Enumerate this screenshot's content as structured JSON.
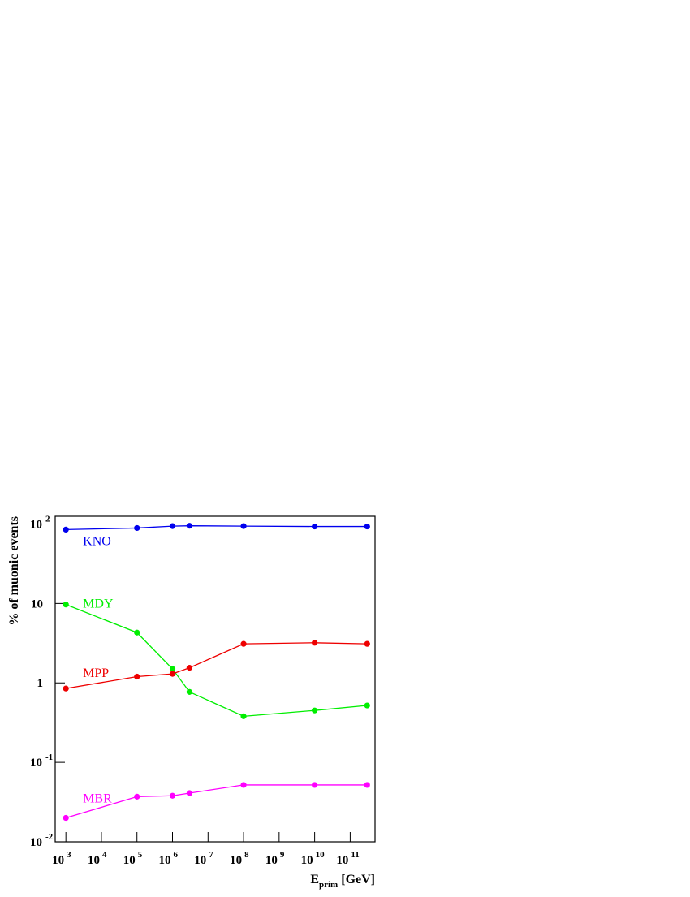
{
  "chart_data": {
    "type": "line",
    "ylabel": "% of muonic events",
    "xlabel": "E",
    "xlabel_sub": "prim",
    "xlabel_unit": "[GeV]",
    "x": [
      1000,
      100000,
      1000000,
      3000000,
      100000000,
      10000000000,
      300000000000
    ],
    "series": [
      {
        "name": "KNO",
        "color": "#0000ee",
        "values": [
          85,
          89,
          94,
          95,
          94,
          93,
          93
        ]
      },
      {
        "name": "MDY",
        "color": "#00ee00",
        "values": [
          9.7,
          4.3,
          1.5,
          0.77,
          0.38,
          0.45,
          0.52
        ]
      },
      {
        "name": "MPP",
        "color": "#ee0000",
        "values": [
          0.85,
          1.2,
          1.3,
          1.55,
          3.1,
          3.2,
          3.1
        ]
      },
      {
        "name": "MBR",
        "color": "#ff00ff",
        "values": [
          0.02,
          0.037,
          0.038,
          0.041,
          0.052,
          0.052,
          0.052
        ]
      }
    ],
    "xscale": "log",
    "yscale": "log",
    "xlim": [
      500,
      500000000000
    ],
    "ylim": [
      0.01,
      125
    ],
    "xticks": [
      {
        "value": 1000,
        "label": "10",
        "sup": "3"
      },
      {
        "value": 10000,
        "label": "10",
        "sup": "4"
      },
      {
        "value": 100000,
        "label": "10",
        "sup": "5"
      },
      {
        "value": 1000000,
        "label": "10",
        "sup": "6"
      },
      {
        "value": 10000000,
        "label": "10",
        "sup": "7"
      },
      {
        "value": 100000000,
        "label": "10",
        "sup": "8"
      },
      {
        "value": 1000000000,
        "label": "10",
        "sup": "9"
      },
      {
        "value": 10000000000,
        "label": "10",
        "sup": "10"
      },
      {
        "value": 100000000000,
        "label": "10",
        "sup": "11"
      }
    ],
    "yticks": [
      {
        "value": 0.01,
        "label": "10",
        "sup": "-2"
      },
      {
        "value": 0.1,
        "label": "10",
        "sup": "-1"
      },
      1,
      10,
      {
        "value": 100,
        "label": "10",
        "sup": "2"
      }
    ]
  }
}
